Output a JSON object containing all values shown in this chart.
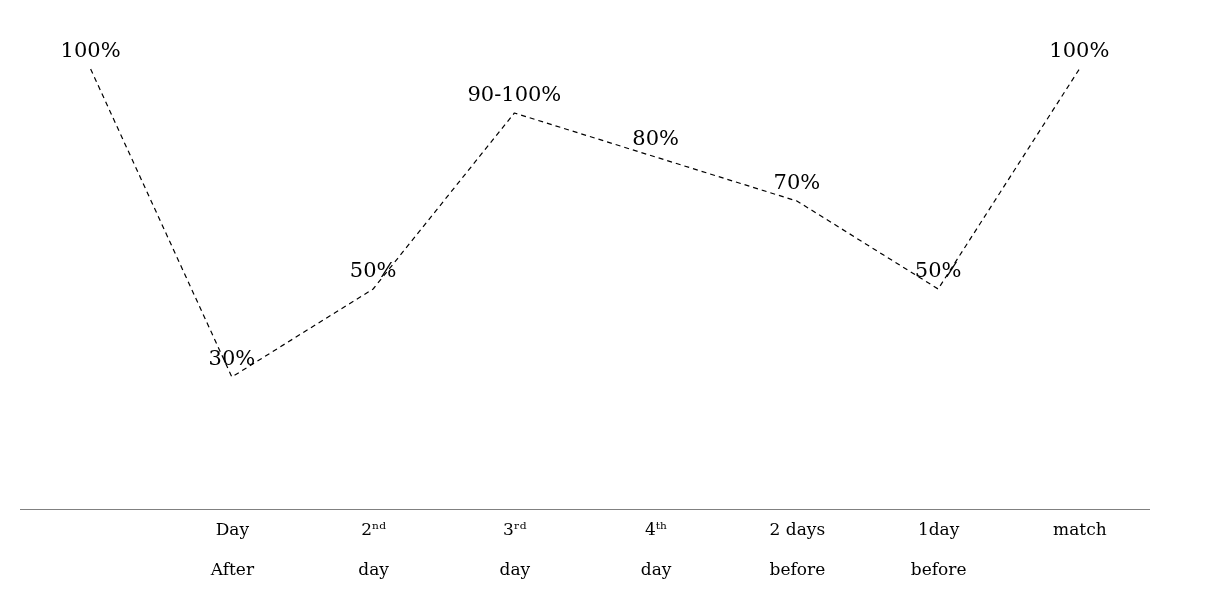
{
  "chart_data": {
    "type": "line",
    "categories": [
      null,
      "Day\nAfter",
      "2ⁿᵈ\nday",
      "3ʳᵈ\nday",
      "4ᵗʰ\nday",
      "2 days\nbefore",
      "1day\nbefore",
      "match"
    ],
    "series": [
      {
        "color": "#000000",
        "values": [
          100,
          30,
          50,
          90,
          80,
          70,
          50,
          100
        ],
        "value_labels": [
          "100%",
          "30%",
          "50%",
          "90-100%",
          "80%",
          "70%",
          "50%",
          "100%"
        ]
      }
    ],
    "line_style": "dashed",
    "marker": "none",
    "grid": false,
    "legend": false
  }
}
